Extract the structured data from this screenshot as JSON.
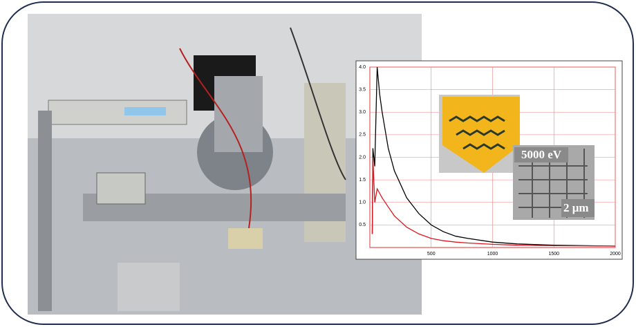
{
  "chart_data": {
    "type": "line",
    "x": [
      20,
      25,
      40,
      60,
      80,
      100,
      150,
      200,
      300,
      400,
      500,
      600,
      700,
      800,
      1000,
      1200,
      1500,
      2000
    ],
    "series": [
      {
        "color": "#000000",
        "values": [
          0.3,
          2.2,
          1.8,
          4.0,
          3.4,
          3.0,
          2.2,
          1.7,
          1.1,
          0.75,
          0.5,
          0.35,
          0.25,
          0.2,
          0.12,
          0.08,
          0.05,
          0.03
        ]
      },
      {
        "color": "#e0141e",
        "values": [
          0.3,
          2.0,
          1.0,
          1.3,
          1.2,
          1.1,
          0.9,
          0.7,
          0.45,
          0.3,
          0.2,
          0.15,
          0.12,
          0.1,
          0.07,
          0.05,
          0.04,
          0.03
        ]
      }
    ],
    "xlim": [
      0,
      2000
    ],
    "xticks": [
      500,
      1000,
      1500,
      2000
    ],
    "ylim": [
      0,
      4.0
    ],
    "yticks": [
      0.5,
      {
        "value": 1.0,
        "label": "1.0"
      },
      1.5,
      {
        "value": 2.0,
        "label": "2.0"
      },
      2.5,
      {
        "value": 3.0,
        "label": "3.0"
      },
      3.5,
      {
        "value": 4.0,
        "label": "4.0"
      }
    ],
    "grid": true,
    "grid_color": "#f08080",
    "annotations": [
      "5000 eV",
      "2 μm"
    ]
  }
}
